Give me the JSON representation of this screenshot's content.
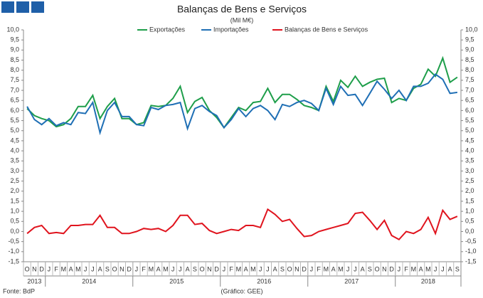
{
  "chart_data": {
    "type": "line",
    "title": "Balanças de Bens e Serviços",
    "subtitle": "(Mil M€)",
    "source": "Fonte: BdP",
    "credit": "(Gráfico: GEE)",
    "categories": [
      "O",
      "N",
      "D",
      "J",
      "F",
      "M",
      "A",
      "M",
      "J",
      "J",
      "A",
      "S",
      "O",
      "N",
      "D",
      "J",
      "F",
      "M",
      "A",
      "M",
      "J",
      "J",
      "A",
      "S",
      "O",
      "N",
      "D",
      "J",
      "F",
      "M",
      "A",
      "M",
      "J",
      "J",
      "A",
      "S",
      "O",
      "N",
      "D",
      "J",
      "F",
      "M",
      "A",
      "M",
      "J",
      "J",
      "A",
      "S",
      "O",
      "N",
      "D",
      "J",
      "F",
      "M",
      "A",
      "M",
      "J",
      "J",
      "A",
      "S"
    ],
    "years": [
      "2013",
      "2014",
      "2015",
      "2016",
      "2017",
      "2018"
    ],
    "series": [
      {
        "name": "Exportações",
        "color": "#1e9e4a",
        "values": [
          6.1,
          5.75,
          5.6,
          5.5,
          5.2,
          5.3,
          5.6,
          6.2,
          6.2,
          6.75,
          5.6,
          6.2,
          6.6,
          5.6,
          5.6,
          5.3,
          5.4,
          6.25,
          6.2,
          6.25,
          6.6,
          7.2,
          5.9,
          6.45,
          6.65,
          6.0,
          5.65,
          5.15,
          5.65,
          6.15,
          6.0,
          6.4,
          6.45,
          7.1,
          6.4,
          6.8,
          6.8,
          6.55,
          6.25,
          6.15,
          6.0,
          7.2,
          6.45,
          7.5,
          7.15,
          7.7,
          7.2,
          7.4,
          7.55,
          7.6,
          6.4,
          6.6,
          6.5,
          7.1,
          7.3,
          8.05,
          7.7,
          8.6,
          7.4,
          7.65
        ]
      },
      {
        "name": "Importações",
        "color": "#1f6fb5",
        "values": [
          6.2,
          5.55,
          5.3,
          5.6,
          5.25,
          5.4,
          5.3,
          5.9,
          5.85,
          6.4,
          4.9,
          6.0,
          6.4,
          5.7,
          5.7,
          5.3,
          5.25,
          6.15,
          6.05,
          6.25,
          6.3,
          6.4,
          5.1,
          6.1,
          6.25,
          5.95,
          5.75,
          5.15,
          5.55,
          6.1,
          5.7,
          6.1,
          6.25,
          6.0,
          5.55,
          6.3,
          6.2,
          6.4,
          6.5,
          6.35,
          6.0,
          7.1,
          6.3,
          7.2,
          6.75,
          6.8,
          6.25,
          6.85,
          7.45,
          7.05,
          6.6,
          7.0,
          6.5,
          7.2,
          7.2,
          7.35,
          7.8,
          7.55,
          6.85,
          6.9
        ]
      },
      {
        "name": "Balanças de Bens e Serviços",
        "color": "#e0141e",
        "values": [
          -0.1,
          0.2,
          0.3,
          -0.1,
          -0.05,
          -0.1,
          0.3,
          0.3,
          0.35,
          0.35,
          0.8,
          0.2,
          0.2,
          -0.1,
          -0.1,
          0.0,
          0.15,
          0.1,
          0.15,
          0.0,
          0.3,
          0.8,
          0.8,
          0.35,
          0.4,
          0.05,
          -0.1,
          0.0,
          0.1,
          0.05,
          0.3,
          0.3,
          0.2,
          1.1,
          0.85,
          0.5,
          0.6,
          0.15,
          -0.25,
          -0.2,
          0.0,
          0.1,
          0.2,
          0.3,
          0.4,
          0.9,
          0.95,
          0.55,
          0.1,
          0.55,
          -0.2,
          -0.4,
          0.0,
          -0.1,
          0.1,
          0.7,
          -0.1,
          1.05,
          0.6,
          0.75
        ]
      }
    ],
    "ylim": [
      -1.5,
      10.0
    ],
    "yticks": [
      {
        "value": 10,
        "label": "10,0"
      },
      {
        "value": 9.5,
        "label": "9,5"
      },
      {
        "value": 9,
        "label": "9,0"
      },
      {
        "value": 8.5,
        "label": "8,5"
      },
      {
        "value": 8,
        "label": "8,0"
      },
      {
        "value": 7.5,
        "label": "7,5"
      },
      {
        "value": 7,
        "label": "7,0"
      },
      {
        "value": 6.5,
        "label": "6,5"
      },
      {
        "value": 6,
        "label": "6,0"
      },
      {
        "value": 5.5,
        "label": "5,5"
      },
      {
        "value": 5,
        "label": "5,0"
      },
      {
        "value": 4.5,
        "label": "4,5"
      },
      {
        "value": 4,
        "label": "4,0"
      },
      {
        "value": 3.5,
        "label": "3,5"
      },
      {
        "value": 3,
        "label": "3,0"
      },
      {
        "value": 2.5,
        "label": "2,5"
      },
      {
        "value": 2,
        "label": "2,0"
      },
      {
        "value": 1.5,
        "label": "1,5"
      },
      {
        "value": 1,
        "label": "1,0"
      },
      {
        "value": 0.5,
        "label": "0,5"
      },
      {
        "value": 0,
        "label": "0,0"
      },
      {
        "value": -0.5,
        "label": "-0,5"
      },
      {
        "value": -1,
        "label": "-1,0"
      },
      {
        "value": -1.5,
        "label": "-1,5"
      }
    ],
    "grid": false
  }
}
